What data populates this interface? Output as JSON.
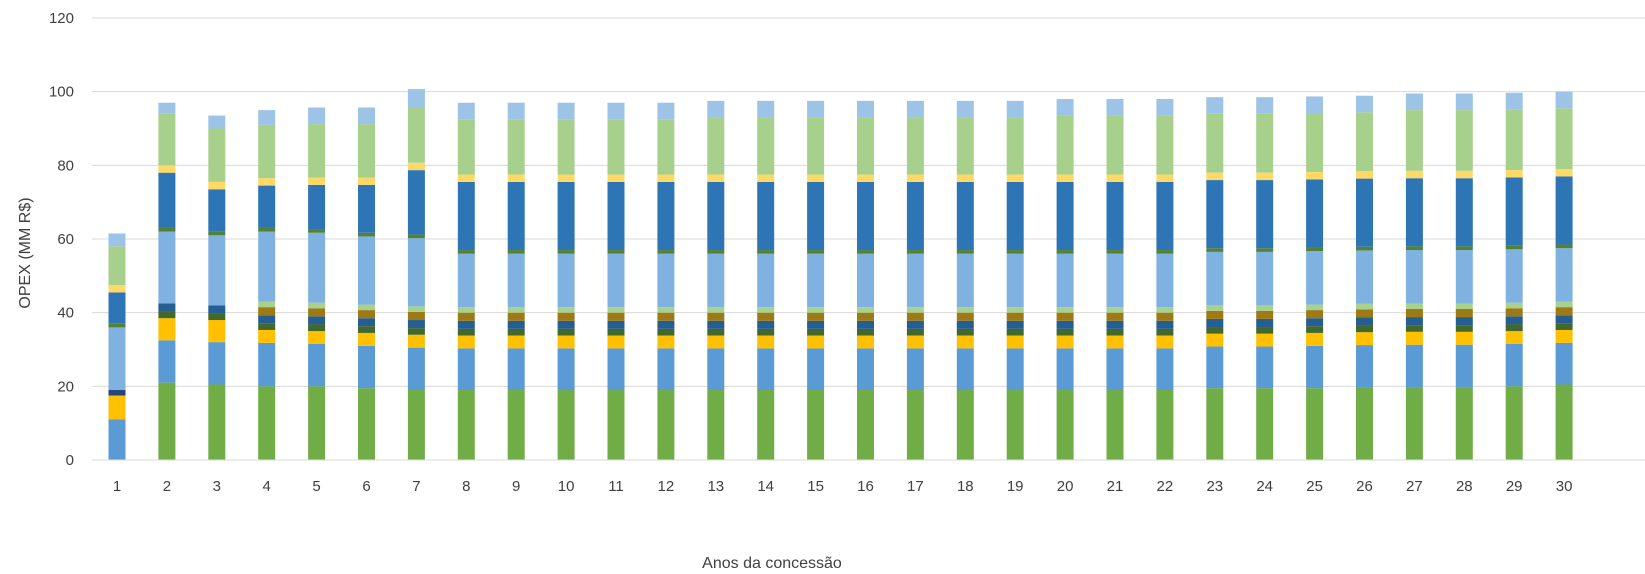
{
  "chart_data": {
    "type": "bar",
    "stacked": true,
    "xlabel": "Anos da concessão",
    "ylabel": "OPEX (MM R$)",
    "ylim": [
      0,
      120
    ],
    "yticks": [
      0,
      20,
      40,
      60,
      80,
      100,
      120
    ],
    "grid": true,
    "categories": [
      "1",
      "2",
      "3",
      "4",
      "5",
      "6",
      "7",
      "8",
      "9",
      "10",
      "11",
      "12",
      "13",
      "14",
      "15",
      "16",
      "17",
      "18",
      "19",
      "20",
      "21",
      "22",
      "23",
      "24",
      "25",
      "26",
      "27",
      "28",
      "29",
      "30"
    ],
    "series": [
      {
        "color": "#70ad47",
        "values": [
          0,
          21,
          20.5,
          20,
          20,
          19.5,
          19,
          19,
          19,
          19,
          19,
          19,
          19,
          19,
          19,
          19,
          19,
          19,
          19,
          19,
          19,
          19,
          19.5,
          19.5,
          19.5,
          19.8,
          19.8,
          19.8,
          20,
          20.5
        ]
      },
      {
        "color": "#5b9bd5",
        "values": [
          11,
          11.5,
          11.5,
          11.8,
          11.5,
          11.5,
          11.5,
          11.3,
          11.3,
          11.3,
          11.3,
          11.3,
          11.3,
          11.3,
          11.3,
          11.3,
          11.3,
          11.3,
          11.3,
          11.3,
          11.3,
          11.3,
          11.3,
          11.3,
          11.5,
          11.4,
          11.5,
          11.5,
          11.5,
          11.3
        ]
      },
      {
        "color": "#ffc000",
        "values": [
          6.5,
          6,
          6,
          3.5,
          3.5,
          3.5,
          3.5,
          3.5,
          3.5,
          3.5,
          3.5,
          3.5,
          3.5,
          3.5,
          3.5,
          3.5,
          3.5,
          3.5,
          3.5,
          3.5,
          3.5,
          3.5,
          3.5,
          3.5,
          3.5,
          3.5,
          3.5,
          3.5,
          3.5,
          3.5
        ]
      },
      {
        "color": "#264478",
        "values": [
          1.5,
          0,
          0,
          0,
          0,
          0,
          0,
          0,
          0,
          0,
          0,
          0,
          0,
          0,
          0,
          0,
          0,
          0,
          0,
          0,
          0,
          0,
          0,
          0,
          0,
          0,
          0,
          0,
          0,
          0
        ]
      },
      {
        "color": "#43682b",
        "values": [
          0,
          1.8,
          1.8,
          1.8,
          1.8,
          1.8,
          1.8,
          1.8,
          1.8,
          1.8,
          1.8,
          1.8,
          1.8,
          1.8,
          1.8,
          1.8,
          1.8,
          1.8,
          1.8,
          1.8,
          1.8,
          1.8,
          1.8,
          1.8,
          1.8,
          1.8,
          1.8,
          1.8,
          1.8,
          1.8
        ]
      },
      {
        "color": "#255e91",
        "values": [
          0,
          2.2,
          2.2,
          2.2,
          2.2,
          2.2,
          2.2,
          2.2,
          2.2,
          2.2,
          2.2,
          2.2,
          2.2,
          2.2,
          2.2,
          2.2,
          2.2,
          2.2,
          2.2,
          2.2,
          2.2,
          2.2,
          2.2,
          2.2,
          2.2,
          2.2,
          2.2,
          2.2,
          2.2,
          2.2
        ]
      },
      {
        "color": "#9e7a16",
        "values": [
          0,
          0,
          0,
          2.2,
          2.2,
          2.2,
          2.2,
          2.2,
          2.2,
          2.2,
          2.2,
          2.2,
          2.2,
          2.2,
          2.2,
          2.2,
          2.2,
          2.2,
          2.2,
          2.2,
          2.2,
          2.2,
          2.2,
          2.2,
          2.2,
          2.2,
          2.2,
          2.2,
          2.2,
          2.2
        ]
      },
      {
        "color": "#a9d18e",
        "values": [
          0,
          0,
          0,
          1.5,
          1.5,
          1.5,
          1.5,
          1.5,
          1.5,
          1.5,
          1.5,
          1.5,
          1.5,
          1.5,
          1.5,
          1.5,
          1.5,
          1.5,
          1.5,
          1.5,
          1.5,
          1.5,
          1.5,
          1.5,
          1.5,
          1.5,
          1.5,
          1.5,
          1.5,
          1.5
        ]
      },
      {
        "color": "#7fb1e1",
        "values": [
          17,
          19.5,
          19,
          19,
          19,
          18.5,
          18.5,
          14.5,
          14.5,
          14.5,
          14.5,
          14.5,
          14.5,
          14.5,
          14.5,
          14.5,
          14.5,
          14.5,
          14.5,
          14.5,
          14.5,
          14.5,
          14.5,
          14.5,
          14.5,
          14.5,
          14.5,
          14.5,
          14.5,
          14.5
        ]
      },
      {
        "color": "#548235",
        "values": [
          1,
          1,
          1,
          1,
          1,
          1,
          1,
          1,
          1,
          1,
          1,
          1,
          1,
          1,
          1,
          1,
          1,
          1,
          1,
          1,
          1,
          1,
          1,
          1,
          1,
          1,
          1,
          1,
          1,
          1
        ]
      },
      {
        "color": "#2e75b6",
        "values": [
          8.5,
          15,
          11.5,
          11.5,
          12,
          13,
          17.5,
          18.5,
          18.5,
          18.5,
          18.5,
          18.5,
          18.5,
          18.5,
          18.5,
          18.5,
          18.5,
          18.5,
          18.5,
          18.5,
          18.5,
          18.5,
          18.5,
          18.5,
          18.5,
          18.5,
          18.5,
          18.5,
          18.5,
          18.5
        ]
      },
      {
        "color": "#ffd966",
        "values": [
          2,
          2,
          2,
          2,
          2,
          2,
          2,
          2,
          2,
          2,
          2,
          2,
          2,
          2,
          2,
          2,
          2,
          2,
          2,
          2,
          2,
          2,
          2,
          2,
          2,
          2,
          2,
          2,
          2,
          2
        ]
      },
      {
        "color": "#a8d08d",
        "values": [
          10.5,
          14,
          14.5,
          14.5,
          14.5,
          14.5,
          15,
          15,
          15,
          15,
          15,
          15,
          15.5,
          15.5,
          15.5,
          15.5,
          15.5,
          15.5,
          15.5,
          16,
          16,
          16,
          16,
          16,
          16,
          16,
          16.5,
          16.5,
          16.5,
          16.5
        ]
      },
      {
        "color": "#9dc3e6",
        "values": [
          3.5,
          3,
          3.5,
          4,
          4.5,
          4.5,
          5,
          4.5,
          4.5,
          4.5,
          4.5,
          4.5,
          4.5,
          4.5,
          4.5,
          4.5,
          4.5,
          4.5,
          4.5,
          4.5,
          4.5,
          4.5,
          4.5,
          4.5,
          4.5,
          4.5,
          4.5,
          4.5,
          4.5,
          4.5
        ]
      }
    ]
  }
}
